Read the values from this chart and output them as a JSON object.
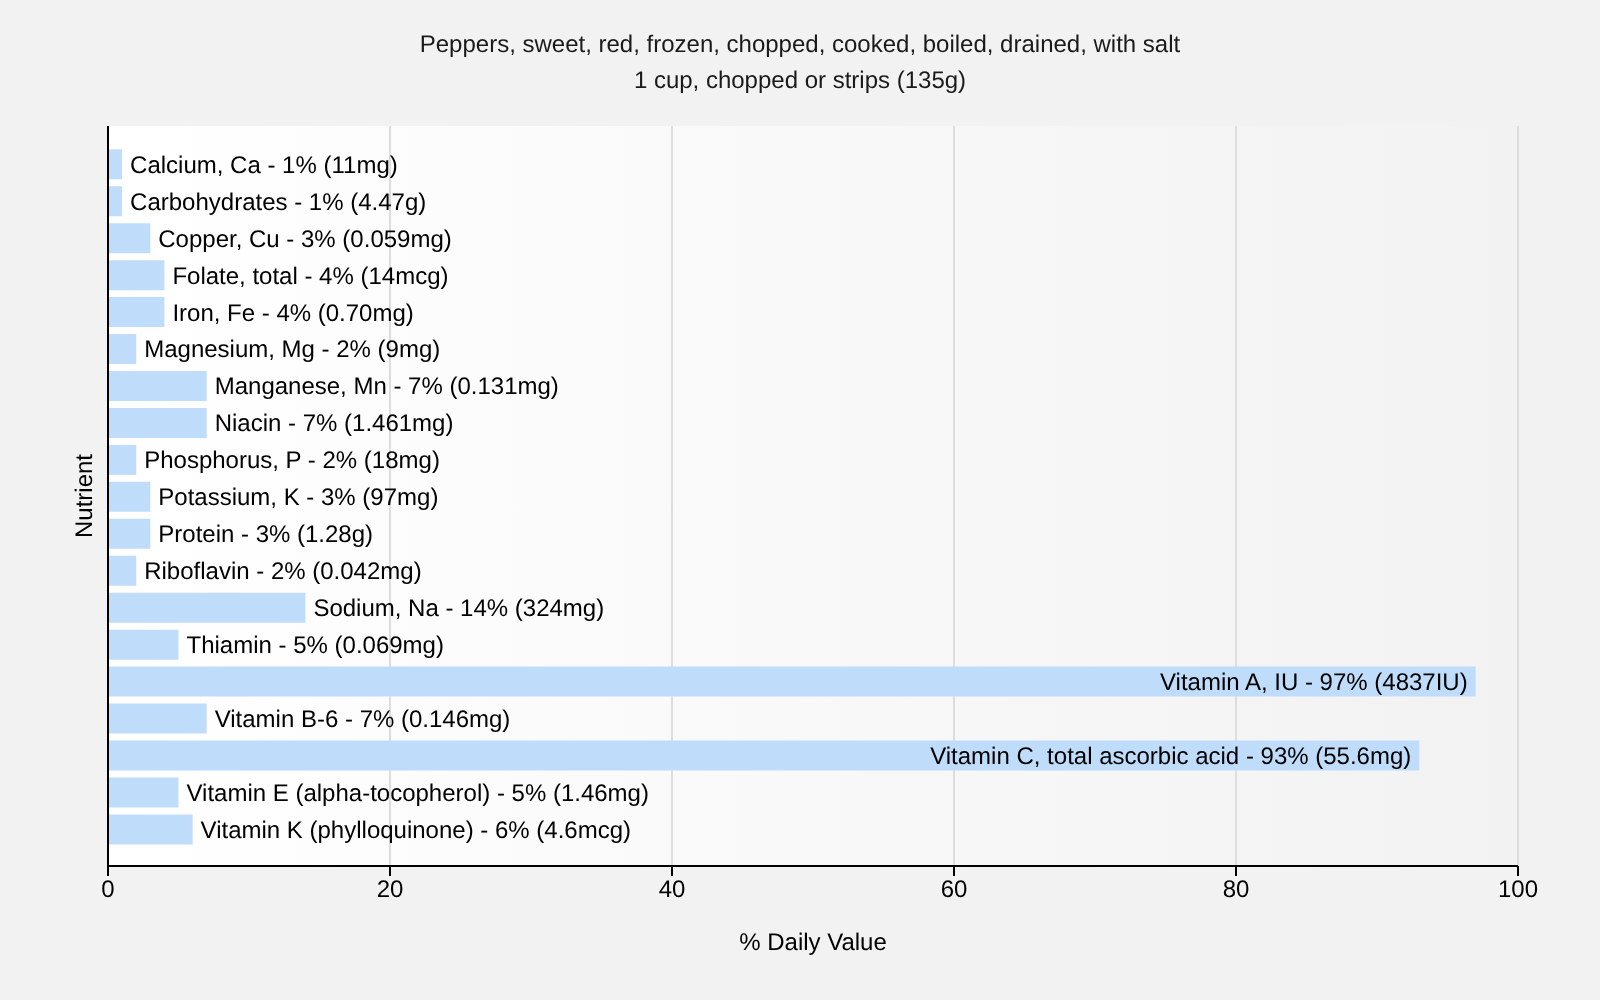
{
  "chart_data": {
    "type": "bar",
    "orientation": "horizontal",
    "title": "Peppers, sweet, red, frozen, chopped, cooked, boiled, drained, with salt",
    "subtitle": "1 cup, chopped or strips (135g)",
    "xlabel": "% Daily Value",
    "ylabel": "Nutrient",
    "categories": [
      "Calcium, Ca - 1% (11mg)",
      "Carbohydrates - 1% (4.47g)",
      "Copper, Cu - 3% (0.059mg)",
      "Folate, total - 4% (14mcg)",
      "Iron, Fe - 4% (0.70mg)",
      "Magnesium, Mg - 2% (9mg)",
      "Manganese, Mn - 7% (0.131mg)",
      "Niacin - 7% (1.461mg)",
      "Phosphorus, P - 2% (18mg)",
      "Potassium, K - 3% (97mg)",
      "Protein - 3% (1.28g)",
      "Riboflavin - 2% (0.042mg)",
      "Sodium, Na - 14% (324mg)",
      "Thiamin - 5% (0.069mg)",
      "Vitamin A, IU - 97% (4837IU)",
      "Vitamin B-6 - 7% (0.146mg)",
      "Vitamin C, total ascorbic acid - 93% (55.6mg)",
      "Vitamin E (alpha-tocopherol) - 5% (1.46mg)",
      "Vitamin K (phylloquinone) - 6% (4.6mcg)"
    ],
    "values": [
      1,
      1,
      3,
      4,
      4,
      2,
      7,
      7,
      2,
      3,
      3,
      2,
      14,
      5,
      97,
      7,
      93,
      5,
      6
    ],
    "color": "#bfdcfb",
    "xlim": [
      0,
      100
    ],
    "xticks": [
      0,
      20,
      40,
      60,
      80,
      100
    ],
    "grid": "x"
  }
}
